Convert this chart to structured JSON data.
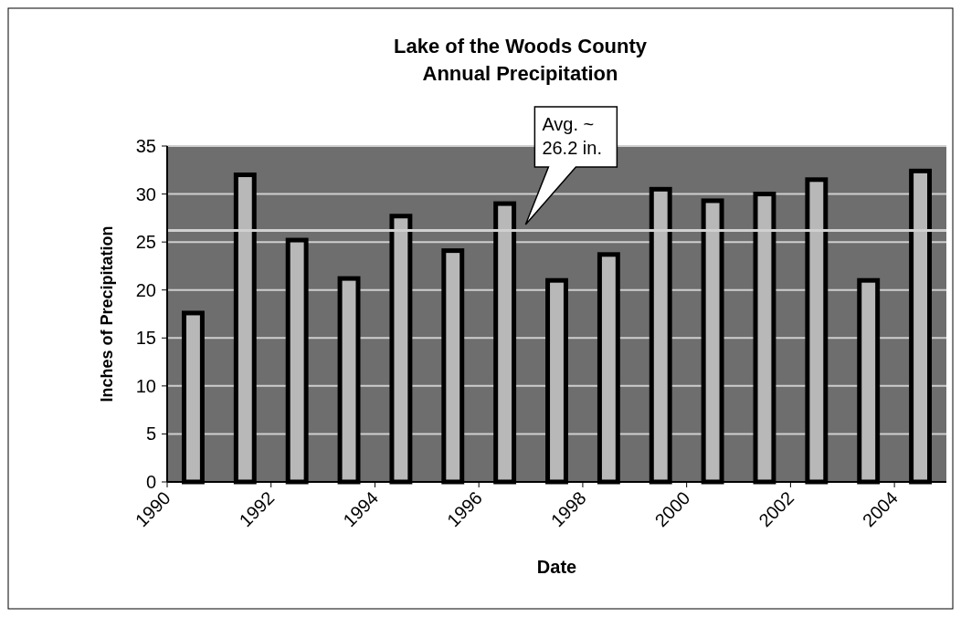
{
  "chart_data": {
    "type": "bar",
    "title": "Lake of the Woods County\nAnnual Precipitation",
    "xlabel": "Date",
    "ylabel": "Inches of Precipitation",
    "x": [
      1990.5,
      1991.5,
      1992.5,
      1993.5,
      1994.5,
      1995.5,
      1996.5,
      1997.5,
      1998.5,
      1999.5,
      2000.5,
      2001.5,
      2002.5,
      2003.5,
      2004.5
    ],
    "values": [
      17.6,
      32.0,
      25.2,
      21.2,
      27.7,
      24.1,
      29.0,
      21.0,
      23.7,
      30.5,
      29.3,
      30.0,
      31.5,
      21.0,
      32.4
    ],
    "color": "#b8b8b8",
    "xlim": [
      1990,
      2005
    ],
    "xticks": [
      1990,
      1992,
      1994,
      1996,
      1998,
      2000,
      2002,
      2004
    ],
    "ylim": [
      0,
      35
    ],
    "yticks": [
      0,
      5,
      10,
      15,
      20,
      25,
      30,
      35
    ],
    "grid": "y",
    "ref_lines": [
      {
        "axis": "y",
        "value": 26.2,
        "color": "#d0d0d0"
      }
    ],
    "annotations": [
      "Avg. ~\n26.2 in."
    ]
  }
}
